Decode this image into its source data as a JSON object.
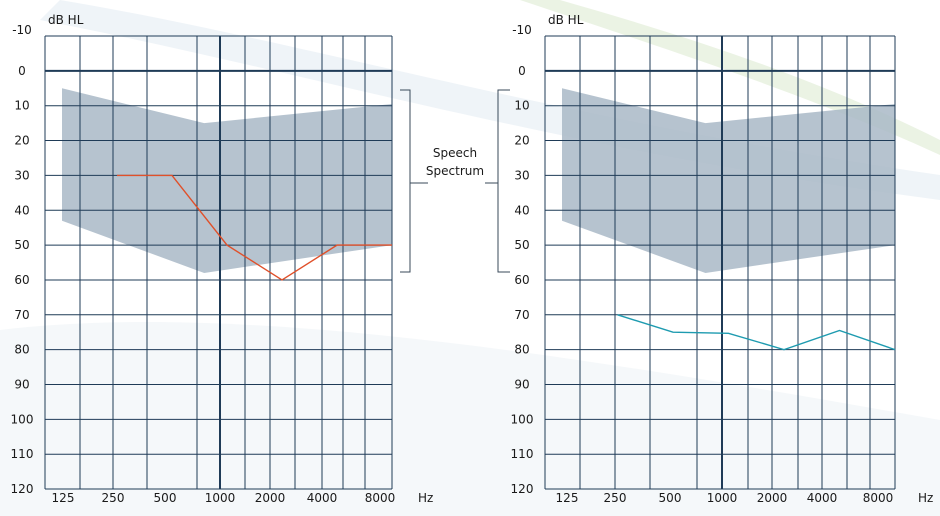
{
  "speech_spectrum_label": [
    "Speech",
    "Spectrum"
  ],
  "chart_data": [
    {
      "type": "line",
      "ylabel": "dB HL",
      "xlabel": "Hz",
      "y_reversed": true,
      "ylim": [
        -10,
        120
      ],
      "yticks": [
        "-10",
        "0",
        "10",
        "20",
        "30",
        "40",
        "50",
        "60",
        "70",
        "80",
        "90",
        "100",
        "110",
        "120"
      ],
      "xticks": [
        "125",
        "250",
        "500",
        "1000",
        "2000",
        "4000",
        "8000"
      ],
      "speech_spectrum": {
        "upper": [
          [
            125,
            5
          ],
          [
            750,
            15
          ],
          [
            8000,
            9.5
          ]
        ],
        "lower": [
          [
            125,
            43
          ],
          [
            750,
            58
          ],
          [
            8000,
            50
          ]
        ]
      },
      "series": [
        {
          "color": "#e0502a",
          "points": [
            [
              250,
              30
            ],
            [
              500,
              30
            ],
            [
              1000,
              50
            ],
            [
              2000,
              60
            ],
            [
              4000,
              50
            ],
            [
              8000,
              50
            ]
          ]
        }
      ]
    },
    {
      "type": "line",
      "ylabel": "dB HL",
      "xlabel": "Hz",
      "y_reversed": true,
      "ylim": [
        -10,
        120
      ],
      "yticks": [
        "-10",
        "0",
        "10",
        "20",
        "30",
        "40",
        "50",
        "60",
        "70",
        "80",
        "90",
        "100",
        "110",
        "120"
      ],
      "xticks": [
        "125",
        "250",
        "500",
        "1000",
        "2000",
        "4000",
        "8000"
      ],
      "speech_spectrum": {
        "upper": [
          [
            125,
            5
          ],
          [
            750,
            15
          ],
          [
            8000,
            9.5
          ]
        ],
        "lower": [
          [
            125,
            43
          ],
          [
            750,
            58
          ],
          [
            8000,
            50
          ]
        ]
      },
      "series": [
        {
          "color": "#1e9bb0",
          "points": [
            [
              250,
              70
            ],
            [
              500,
              75
            ],
            [
              1000,
              75.3
            ],
            [
              2000,
              80
            ],
            [
              4000,
              74.5
            ],
            [
              8000,
              80
            ]
          ]
        }
      ]
    }
  ],
  "colors": {
    "grid": "#1f3b57",
    "spectrum_fill": "#a9b8c7",
    "bracket": "#3a4a5a",
    "bg_swoosh": "#dbe8f0"
  }
}
